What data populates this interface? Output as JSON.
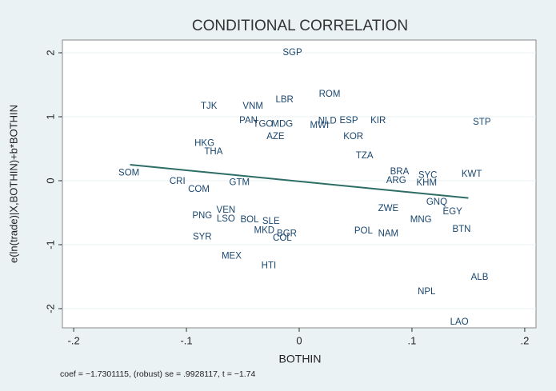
{
  "chart_data": {
    "type": "scatter",
    "title": "CONDITIONAL CORRELATION",
    "x_label": "BOTHIN",
    "y_label": "e(ln(trade)|X,BOTHIN)+b*BOTHIN",
    "note": "coef = −1.7301115, (robust) se = .9928117, t = −1.74",
    "xlim": [
      -0.21,
      0.21
    ],
    "ylim": [
      -2.3,
      2.2
    ],
    "xticks": [
      {
        "value": -0.2,
        "label": "-.2"
      },
      {
        "value": -0.1,
        "label": "-.1"
      },
      {
        "value": 0,
        "label": "0"
      },
      {
        "value": 0.1,
        "label": ".1"
      },
      {
        "value": 0.2,
        "label": ".2"
      }
    ],
    "yticks": [
      -2,
      -1,
      0,
      1,
      2
    ],
    "grid": true,
    "color": "#1a476f",
    "labels": [
      "SGP",
      "ROM",
      "LBR",
      "TJK",
      "VNM",
      "KIR",
      "STP",
      "PAN",
      "TGO",
      "MDG",
      "ESP",
      "NLD",
      "MWI",
      "HKG",
      "KWT",
      "SOM",
      "CRI",
      "BRA",
      "SYC",
      "ARG",
      "KHM",
      "GNQ",
      "EGY",
      "PNG",
      "MNG",
      "BTN",
      "NAM",
      "SYR",
      "MKD",
      "BOL",
      "LSO",
      "VEN",
      "SLE",
      "COL",
      "BGR",
      "MEX",
      "HTI",
      "ALB",
      "NPL",
      "LAO",
      "POL",
      "ZWE",
      "COM",
      "TZA",
      "THA",
      "KOR",
      "AZE",
      "GTM"
    ],
    "x": [
      -0.006,
      0.027,
      -0.013,
      -0.08,
      -0.041,
      0.07,
      0.162,
      -0.045,
      -0.032,
      -0.015,
      0.044,
      0.025,
      0.018,
      -0.084,
      0.153,
      -0.151,
      -0.108,
      0.089,
      0.114,
      0.086,
      0.113,
      0.122,
      0.136,
      -0.086,
      0.108,
      0.144,
      0.079,
      -0.086,
      -0.031,
      -0.044,
      -0.065,
      -0.065,
      -0.025,
      -0.015,
      -0.011,
      -0.06,
      -0.027,
      0.16,
      0.113,
      0.142,
      0.057,
      0.079,
      -0.089,
      0.058,
      -0.076,
      0.048,
      -0.021,
      -0.053
    ],
    "y": [
      2.0,
      1.35,
      1.26,
      1.16,
      1.16,
      0.94,
      0.91,
      0.94,
      0.88,
      0.88,
      0.94,
      0.93,
      0.86,
      0.58,
      0.1,
      0.12,
      -0.01,
      0.14,
      0.08,
      0.0,
      -0.04,
      -0.34,
      -0.49,
      -0.55,
      -0.61,
      -0.76,
      -0.83,
      -0.88,
      -0.78,
      -0.61,
      -0.6,
      -0.46,
      -0.64,
      -0.9,
      -0.83,
      -1.18,
      -1.33,
      -1.51,
      -1.74,
      -2.21,
      -0.79,
      -0.44,
      -0.14,
      0.39,
      0.45,
      0.69,
      0.69,
      -0.03
    ],
    "fit": {
      "color": "#2d6d66",
      "x": [
        -0.15,
        0.15
      ],
      "y": [
        0.25,
        -0.27
      ]
    }
  }
}
